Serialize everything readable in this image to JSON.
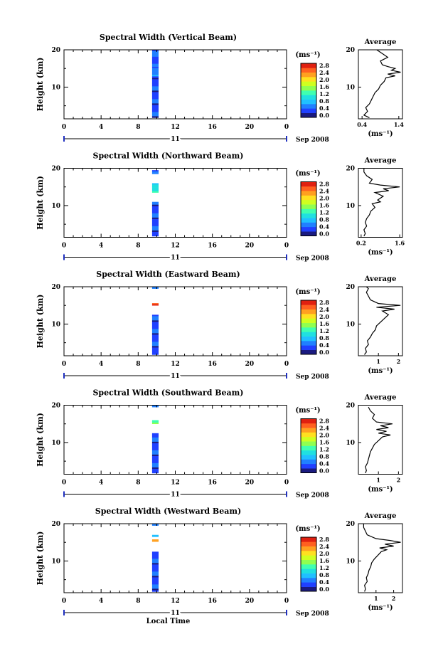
{
  "chart_data": {
    "type": "heatmap",
    "date_label": "Sep 2008",
    "day_label": "11",
    "xlabel_bottom": "Local Time",
    "ylabel": "Height (km)",
    "xticks": [
      "0",
      "4",
      "8",
      "12",
      "16",
      "20",
      "0"
    ],
    "yticks": [
      "20",
      "10"
    ],
    "xlim": [
      0,
      24
    ],
    "ylim": [
      1.5,
      20
    ],
    "colorbar": {
      "unit": "(ms⁻¹)",
      "ticks": [
        "2.8",
        "2.4",
        "2.0",
        "1.6",
        "1.2",
        "0.8",
        "0.4",
        "0.0"
      ],
      "range": [
        0.0,
        3.0
      ]
    },
    "avg_title": "Average",
    "avg_unit": "(ms⁻¹)",
    "panels": [
      {
        "title": "Spectral Width (Vertical Beam)",
        "data_time": [
          9.5,
          10.2
        ],
        "height_blocks": [
          [
            1.8,
            12.5,
            0.45
          ],
          [
            12.5,
            15.5,
            0.6
          ],
          [
            15.5,
            20.0,
            0.5
          ]
        ],
        "avg_xticks": [
          "0.4",
          "1.4"
        ],
        "avg_xlim": [
          0.3,
          1.5
        ],
        "avg_profile": [
          [
            1.8,
            0.6
          ],
          [
            2.5,
            0.45
          ],
          [
            3.5,
            0.55
          ],
          [
            4.5,
            0.5
          ],
          [
            5.5,
            0.6
          ],
          [
            6.5,
            0.65
          ],
          [
            7.5,
            0.7
          ],
          [
            8.5,
            0.75
          ],
          [
            9.5,
            0.85
          ],
          [
            10.5,
            0.9
          ],
          [
            11.5,
            1.0
          ],
          [
            12.5,
            1.05
          ],
          [
            13.0,
            1.3
          ],
          [
            13.5,
            1.1
          ],
          [
            14.0,
            1.45
          ],
          [
            14.5,
            1.2
          ],
          [
            15.0,
            1.3
          ],
          [
            15.5,
            1.1
          ],
          [
            16.0,
            0.95
          ],
          [
            17.0,
            0.9
          ],
          [
            18.0,
            1.1
          ],
          [
            19.0,
            0.95
          ],
          [
            20.0,
            0.8
          ]
        ]
      },
      {
        "title": "Spectral Width (Northward Beam)",
        "data_time": [
          9.5,
          10.2
        ],
        "height_blocks": [
          [
            1.8,
            11.0,
            0.45
          ],
          [
            13.5,
            16.0,
            1.2
          ],
          [
            18.5,
            19.5,
            0.6
          ]
        ],
        "avg_xticks": [
          "0.2",
          "1.6"
        ],
        "avg_xlim": [
          0.1,
          1.7
        ],
        "avg_profile": [
          [
            1.8,
            0.3
          ],
          [
            2.5,
            0.35
          ],
          [
            3.5,
            0.3
          ],
          [
            4.5,
            0.4
          ],
          [
            5.5,
            0.35
          ],
          [
            6.5,
            0.4
          ],
          [
            7.5,
            0.5
          ],
          [
            8.5,
            0.55
          ],
          [
            9.5,
            0.7
          ],
          [
            10.5,
            0.6
          ],
          [
            11.0,
            0.9
          ],
          [
            11.5,
            0.8
          ],
          [
            12.5,
            1.0
          ],
          [
            13.5,
            0.7
          ],
          [
            14.0,
            1.2
          ],
          [
            14.5,
            1.0
          ],
          [
            15.0,
            1.6
          ],
          [
            15.5,
            0.9
          ],
          [
            16.0,
            0.5
          ],
          [
            17.0,
            0.6
          ],
          [
            18.0,
            0.4
          ],
          [
            19.0,
            0.3
          ],
          [
            20.0,
            0.3
          ]
        ]
      },
      {
        "title": "Spectral Width (Eastward Beam)",
        "data_time": [
          9.5,
          10.2
        ],
        "height_blocks": [
          [
            1.8,
            12.5,
            0.45
          ],
          [
            15.0,
            15.6,
            2.6
          ],
          [
            19.5,
            20.0,
            0.8
          ]
        ],
        "avg_xticks": [
          "1",
          "2"
        ],
        "avg_xlim": [
          0.0,
          2.2
        ],
        "avg_profile": [
          [
            1.8,
            0.3
          ],
          [
            2.5,
            0.4
          ],
          [
            3.5,
            0.35
          ],
          [
            4.5,
            0.5
          ],
          [
            5.5,
            0.45
          ],
          [
            6.5,
            0.6
          ],
          [
            7.5,
            0.7
          ],
          [
            8.5,
            0.85
          ],
          [
            9.5,
            0.9
          ],
          [
            10.5,
            1.1
          ],
          [
            11.5,
            1.3
          ],
          [
            12.5,
            1.5
          ],
          [
            13.5,
            1.2
          ],
          [
            14.0,
            1.8
          ],
          [
            14.5,
            0.9
          ],
          [
            15.0,
            2.1
          ],
          [
            15.5,
            1.0
          ],
          [
            16.5,
            0.6
          ],
          [
            17.5,
            0.5
          ],
          [
            18.5,
            0.4
          ],
          [
            19.5,
            0.5
          ],
          [
            20.0,
            0.4
          ]
        ]
      },
      {
        "title": "Spectral Width (Southward Beam)",
        "data_time": [
          9.5,
          10.2
        ],
        "height_blocks": [
          [
            1.8,
            12.5,
            0.45
          ],
          [
            15.0,
            16.0,
            1.4
          ],
          [
            19.5,
            20.0,
            0.6
          ]
        ],
        "avg_xticks": [
          "1",
          "2"
        ],
        "avg_xlim": [
          0.0,
          2.2
        ],
        "avg_profile": [
          [
            1.8,
            0.35
          ],
          [
            2.5,
            0.4
          ],
          [
            3.5,
            0.35
          ],
          [
            4.5,
            0.45
          ],
          [
            5.5,
            0.5
          ],
          [
            6.5,
            0.55
          ],
          [
            7.5,
            0.6
          ],
          [
            8.5,
            0.7
          ],
          [
            9.5,
            0.8
          ],
          [
            10.5,
            1.0
          ],
          [
            11.5,
            1.2
          ],
          [
            12.0,
            1.6
          ],
          [
            12.5,
            1.0
          ],
          [
            13.0,
            1.4
          ],
          [
            13.5,
            0.9
          ],
          [
            14.0,
            1.5
          ],
          [
            14.5,
            1.1
          ],
          [
            15.0,
            1.7
          ],
          [
            15.5,
            0.9
          ],
          [
            16.5,
            0.7
          ],
          [
            17.5,
            0.8
          ],
          [
            18.5,
            0.6
          ],
          [
            19.5,
            0.5
          ]
        ]
      },
      {
        "title": "Spectral Width (Westward Beam)",
        "data_time": [
          9.5,
          10.2
        ],
        "height_blocks": [
          [
            1.8,
            12.5,
            0.45
          ],
          [
            15.2,
            15.8,
            2.5
          ],
          [
            16.5,
            17.0,
            0.9
          ],
          [
            19.5,
            20.0,
            0.6
          ]
        ],
        "avg_xticks": [
          "1",
          "2"
        ],
        "avg_xlim": [
          0.0,
          2.5
        ],
        "avg_profile": [
          [
            1.8,
            0.35
          ],
          [
            2.5,
            0.4
          ],
          [
            3.5,
            0.35
          ],
          [
            4.5,
            0.5
          ],
          [
            5.5,
            0.45
          ],
          [
            6.5,
            0.55
          ],
          [
            7.5,
            0.6
          ],
          [
            8.5,
            0.7
          ],
          [
            9.5,
            0.75
          ],
          [
            10.5,
            0.9
          ],
          [
            11.5,
            1.1
          ],
          [
            12.5,
            1.3
          ],
          [
            13.0,
            1.6
          ],
          [
            13.5,
            1.2
          ],
          [
            14.0,
            2.0
          ],
          [
            14.5,
            1.5
          ],
          [
            15.0,
            2.4
          ],
          [
            15.5,
            1.8
          ],
          [
            16.0,
            1.0
          ],
          [
            17.0,
            0.5
          ],
          [
            18.0,
            0.4
          ],
          [
            19.0,
            0.3
          ],
          [
            20.0,
            0.3
          ]
        ]
      }
    ]
  }
}
